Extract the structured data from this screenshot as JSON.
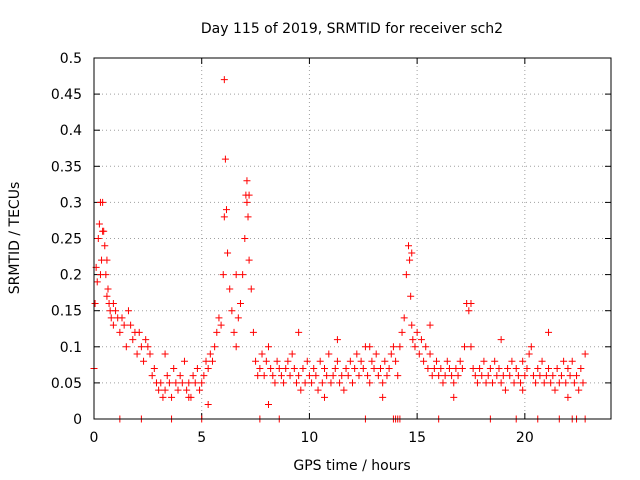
{
  "chart_data": {
    "type": "scatter",
    "title": "Day 115 of 2019, SRMTID for receiver sch2",
    "xlabel": "GPS time / hours",
    "ylabel": "SRMTID / TECUs",
    "xlim": [
      0,
      24
    ],
    "ylim": [
      0,
      0.5
    ],
    "grid": true,
    "marker": "+",
    "series_color": "#ff0000",
    "x_ticks": [
      0,
      5,
      10,
      15,
      20
    ],
    "x_tick_labels": [
      "0",
      "5",
      "10",
      "15",
      "20"
    ],
    "y_ticks": [
      0,
      0.05,
      0.1,
      0.15,
      0.2,
      0.25,
      0.3,
      0.35,
      0.4,
      0.45,
      0.5
    ],
    "y_tick_labels": [
      "0",
      "0.05",
      "0.1",
      "0.15",
      "0.2",
      "0.25",
      "0.3",
      "0.35",
      "0.4",
      "0.45",
      "0.5"
    ],
    "series": [
      {
        "name": "SRMTID",
        "x": [
          0.0,
          0.05,
          0.1,
          0.15,
          0.2,
          0.25,
          0.3,
          0.35,
          0.4,
          0.45,
          0.5,
          0.55,
          0.6,
          0.65,
          0.7,
          0.75,
          0.8,
          0.9,
          1.0,
          1.1,
          1.2,
          1.3,
          1.4,
          1.5,
          1.6,
          1.7,
          1.8,
          1.9,
          2.0,
          2.1,
          2.2,
          2.3,
          2.4,
          2.5,
          2.6,
          2.7,
          2.8,
          2.9,
          3.0,
          3.1,
          3.2,
          3.3,
          3.4,
          3.5,
          3.6,
          3.7,
          3.8,
          3.9,
          4.0,
          4.1,
          4.2,
          4.3,
          4.4,
          4.5,
          4.6,
          4.7,
          4.8,
          4.9,
          5.0,
          5.1,
          5.2,
          5.3,
          5.4,
          5.5,
          5.6,
          5.7,
          5.8,
          5.9,
          6.0,
          6.05,
          6.1,
          6.15,
          6.2,
          6.3,
          6.4,
          6.5,
          6.6,
          6.7,
          6.8,
          6.9,
          7.0,
          7.05,
          7.1,
          7.15,
          7.2,
          7.3,
          7.4,
          7.5,
          7.6,
          7.7,
          7.8,
          7.9,
          8.0,
          8.1,
          8.2,
          8.3,
          8.4,
          8.5,
          8.6,
          8.7,
          8.8,
          8.9,
          9.0,
          9.1,
          9.2,
          9.3,
          9.4,
          9.5,
          9.6,
          9.7,
          9.8,
          9.9,
          10.0,
          10.1,
          10.2,
          10.3,
          10.4,
          10.5,
          10.6,
          10.7,
          10.8,
          10.9,
          11.0,
          11.1,
          11.2,
          11.3,
          11.4,
          11.5,
          11.6,
          11.7,
          11.8,
          11.9,
          12.0,
          12.1,
          12.2,
          12.3,
          12.4,
          12.5,
          12.6,
          12.7,
          12.8,
          12.9,
          13.0,
          13.1,
          13.2,
          13.3,
          13.4,
          13.5,
          13.6,
          13.7,
          13.8,
          13.9,
          14.0,
          14.1,
          14.2,
          14.3,
          14.4,
          14.5,
          14.6,
          14.65,
          14.7,
          14.75,
          14.8,
          14.9,
          15.0,
          15.1,
          15.2,
          15.3,
          15.4,
          15.5,
          15.6,
          15.7,
          15.8,
          15.9,
          16.0,
          16.1,
          16.2,
          16.3,
          16.4,
          16.5,
          16.6,
          16.7,
          16.8,
          16.9,
          17.0,
          17.1,
          17.2,
          17.3,
          17.4,
          17.5,
          17.6,
          17.7,
          17.8,
          17.9,
          18.0,
          18.1,
          18.2,
          18.3,
          18.4,
          18.5,
          18.6,
          18.7,
          18.8,
          18.9,
          19.0,
          19.1,
          19.2,
          19.3,
          19.4,
          19.5,
          19.6,
          19.7,
          19.8,
          19.9,
          20.0,
          20.1,
          20.2,
          20.3,
          20.4,
          20.5,
          20.6,
          20.7,
          20.8,
          20.9,
          21.0,
          21.1,
          21.2,
          21.3,
          21.4,
          21.5,
          21.6,
          21.7,
          21.8,
          21.9,
          22.0,
          22.1,
          22.2,
          22.3,
          22.4,
          22.5,
          22.6,
          22.7,
          22.8,
          1.2,
          2.2,
          3.6,
          5.0,
          7.7,
          8.6,
          12.6,
          13.9,
          14.0,
          14.1,
          14.2,
          16.0,
          18.4,
          19.6,
          20.6,
          21.6,
          22.2,
          22.4,
          22.8,
          0.3,
          0.6,
          6.05,
          7.1,
          14.75,
          17.5,
          0.4,
          0.9,
          6.6,
          7.2,
          9.5,
          11.3,
          12.8,
          15.6,
          18.9,
          21.1,
          3.3,
          4.4,
          5.3,
          8.1,
          10.7,
          13.4,
          16.7,
          19.9,
          22.0
        ],
        "y": [
          0.07,
          0.16,
          0.21,
          0.19,
          0.25,
          0.27,
          0.2,
          0.22,
          0.3,
          0.26,
          0.24,
          0.2,
          0.17,
          0.18,
          0.16,
          0.15,
          0.14,
          0.13,
          0.15,
          0.14,
          0.12,
          0.14,
          0.13,
          0.1,
          0.15,
          0.13,
          0.11,
          0.12,
          0.09,
          0.12,
          0.1,
          0.08,
          0.11,
          0.1,
          0.09,
          0.06,
          0.07,
          0.05,
          0.04,
          0.05,
          0.03,
          0.04,
          0.06,
          0.05,
          0.03,
          0.07,
          0.05,
          0.04,
          0.06,
          0.05,
          0.08,
          0.04,
          0.05,
          0.03,
          0.06,
          0.05,
          0.07,
          0.04,
          0.05,
          0.06,
          0.08,
          0.07,
          0.09,
          0.08,
          0.1,
          0.12,
          0.14,
          0.13,
          0.2,
          0.47,
          0.36,
          0.29,
          0.23,
          0.18,
          0.15,
          0.12,
          0.1,
          0.14,
          0.16,
          0.2,
          0.25,
          0.31,
          0.33,
          0.28,
          0.22,
          0.18,
          0.12,
          0.08,
          0.06,
          0.07,
          0.09,
          0.06,
          0.08,
          0.1,
          0.07,
          0.06,
          0.05,
          0.08,
          0.07,
          0.06,
          0.05,
          0.07,
          0.08,
          0.06,
          0.09,
          0.07,
          0.05,
          0.06,
          0.04,
          0.07,
          0.05,
          0.08,
          0.06,
          0.05,
          0.07,
          0.06,
          0.04,
          0.08,
          0.05,
          0.07,
          0.06,
          0.09,
          0.05,
          0.06,
          0.07,
          0.08,
          0.05,
          0.06,
          0.04,
          0.07,
          0.06,
          0.08,
          0.05,
          0.07,
          0.09,
          0.06,
          0.08,
          0.07,
          0.1,
          0.06,
          0.05,
          0.08,
          0.07,
          0.09,
          0.06,
          0.07,
          0.05,
          0.08,
          0.06,
          0.07,
          0.09,
          0.1,
          0.08,
          0.06,
          0.1,
          0.12,
          0.14,
          0.2,
          0.24,
          0.22,
          0.17,
          0.13,
          0.11,
          0.1,
          0.12,
          0.09,
          0.11,
          0.08,
          0.1,
          0.07,
          0.09,
          0.06,
          0.07,
          0.08,
          0.06,
          0.07,
          0.05,
          0.06,
          0.08,
          0.07,
          0.06,
          0.05,
          0.07,
          0.06,
          0.08,
          0.07,
          0.1,
          0.16,
          0.15,
          0.1,
          0.07,
          0.06,
          0.05,
          0.07,
          0.06,
          0.08,
          0.05,
          0.06,
          0.07,
          0.05,
          0.08,
          0.06,
          0.07,
          0.05,
          0.06,
          0.04,
          0.07,
          0.06,
          0.08,
          0.05,
          0.07,
          0.06,
          0.05,
          0.08,
          0.06,
          0.07,
          0.09,
          0.1,
          0.06,
          0.05,
          0.07,
          0.06,
          0.08,
          0.05,
          0.06,
          0.07,
          0.05,
          0.06,
          0.04,
          0.07,
          0.05,
          0.06,
          0.08,
          0.05,
          0.07,
          0.06,
          0.08,
          0.05,
          0.06,
          0.04,
          0.07,
          0.05,
          0.09,
          0.0,
          0.0,
          0.0,
          0.0,
          0.0,
          0.0,
          0.0,
          0.0,
          0.0,
          0.0,
          0.0,
          0.0,
          0.0,
          0.0,
          0.0,
          0.0,
          0.0,
          0.0,
          0.0,
          0.3,
          0.22,
          0.28,
          0.3,
          0.23,
          0.16,
          0.26,
          0.16,
          0.2,
          0.31,
          0.12,
          0.11,
          0.1,
          0.13,
          0.11,
          0.12,
          0.09,
          0.03,
          0.02,
          0.02,
          0.03,
          0.03,
          0.03,
          0.04,
          0.03
        ]
      }
    ]
  }
}
